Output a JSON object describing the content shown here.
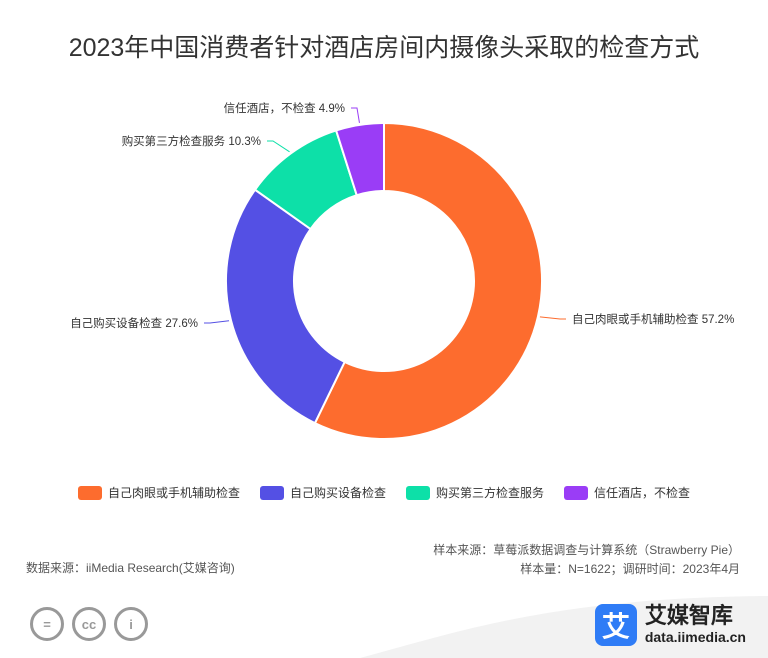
{
  "title": "2023年中国消费者针对酒店房间内摄像头采取的检查方式",
  "chart_data": {
    "type": "pie",
    "donut": true,
    "categories": [
      "自己肉眼或手机辅助检查",
      "自己购买设备检查",
      "购买第三方检查服务",
      "信任酒店，不检查"
    ],
    "values": [
      57.2,
      27.6,
      10.3,
      4.9
    ],
    "labels": [
      "自己肉眼或手机辅助检查 57.2%",
      "自己购买设备检查 27.6%",
      "购买第三方检查服务 10.3%",
      "信任酒店，不检查 4.9%"
    ],
    "colors": [
      "#fd6c2e",
      "#5450e4",
      "#0de0a8",
      "#9a3df6"
    ],
    "legend_position": "bottom"
  },
  "legend": [
    {
      "label": "自己肉眼或手机辅助检查",
      "color": "#fd6c2e"
    },
    {
      "label": "自己购买设备检查",
      "color": "#5450e4"
    },
    {
      "label": "购买第三方检查服务",
      "color": "#0de0a8"
    },
    {
      "label": "信任酒店，不检查",
      "color": "#9a3df6"
    }
  ],
  "source": {
    "data_source": "数据来源：iiMedia Research(艾媒咨询)",
    "sample_source": "样本来源：草莓派数据调查与计算系统（Strawberry Pie）",
    "sample_info": "样本量：N=1622；调研时间：2023年4月"
  },
  "brand": {
    "logo_char": "艾",
    "name": "艾媒智库",
    "url": "data.iimedia.cn"
  },
  "license_icons": [
    "=",
    "cc",
    "i"
  ]
}
